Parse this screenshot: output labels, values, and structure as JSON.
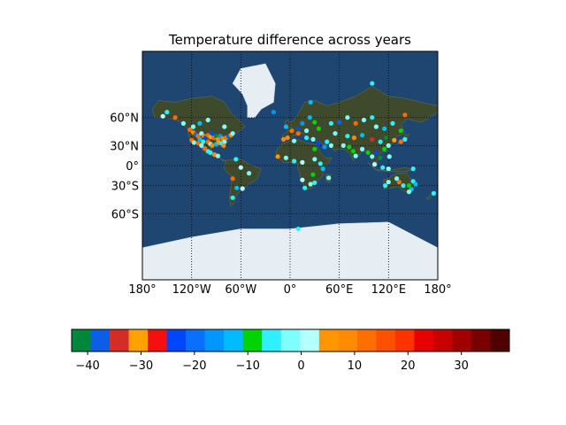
{
  "title": "Temperature difference across years",
  "map": {
    "lat_labels": [
      "60°N",
      "30°N",
      "0°",
      "30°S",
      "60°S"
    ],
    "lon_labels": [
      "180°",
      "120°W",
      "60°W",
      "0°",
      "60°E",
      "120°E",
      "180°"
    ],
    "lat_values": [
      60,
      30,
      0,
      -30,
      -60
    ],
    "lon_values": [
      -180,
      -120,
      -60,
      0,
      60,
      120,
      180
    ],
    "colors": {
      "ocean": "#1f4670",
      "land": "#3f4a2c",
      "ice": "#e6eef4"
    }
  },
  "chart_data": {
    "type": "scatter",
    "title": "Temperature difference across years",
    "xlabel": "",
    "ylabel": "",
    "xlim": [
      -180,
      180
    ],
    "ylim": [
      -85,
      85
    ],
    "colorbar": {
      "ticks": [
        -40,
        -30,
        -20,
        -10,
        0,
        10,
        20,
        30
      ],
      "range": [
        -43,
        39
      ],
      "colors": [
        "#00873c",
        "#0a5fe6",
        "#d42d28",
        "#ffa200",
        "#f50f0f",
        "#0046ff",
        "#0a6eff",
        "#0096ff",
        "#00bcff",
        "#00d400",
        "#2ef0ff",
        "#80ffff",
        "#b4ffff",
        "#ff9600",
        "#ff8c00",
        "#ff6e00",
        "#ff5000",
        "#ff3200",
        "#e60000",
        "#c80000",
        "#a00000",
        "#780000",
        "#500000"
      ]
    },
    "points": [
      {
        "lon": -155,
        "lat": 61,
        "v": 2
      },
      {
        "lon": -150,
        "lat": 64,
        "v": -5
      },
      {
        "lon": -140,
        "lat": 60,
        "v": 12
      },
      {
        "lon": -130,
        "lat": 55,
        "v": -3
      },
      {
        "lon": -122,
        "lat": 49,
        "v": 14
      },
      {
        "lon": -118,
        "lat": 46,
        "v": 8
      },
      {
        "lon": -115,
        "lat": 44,
        "v": -20
      },
      {
        "lon": -112,
        "lat": 42,
        "v": 12
      },
      {
        "lon": -108,
        "lat": 45,
        "v": -1
      },
      {
        "lon": -105,
        "lat": 42,
        "v": 9
      },
      {
        "lon": -103,
        "lat": 40,
        "v": -24
      },
      {
        "lon": -100,
        "lat": 43,
        "v": 13
      },
      {
        "lon": -97,
        "lat": 41,
        "v": -31
      },
      {
        "lon": -95,
        "lat": 45,
        "v": -25
      },
      {
        "lon": -93,
        "lat": 40,
        "v": 11
      },
      {
        "lon": -90,
        "lat": 42,
        "v": -42
      },
      {
        "lon": -88,
        "lat": 38,
        "v": 9
      },
      {
        "lon": -85,
        "lat": 42,
        "v": -15
      },
      {
        "lon": -82,
        "lat": 39,
        "v": 10
      },
      {
        "lon": -80,
        "lat": 35,
        "v": -3
      },
      {
        "lon": -78,
        "lat": 40,
        "v": 12
      },
      {
        "lon": -75,
        "lat": 42,
        "v": -37
      },
      {
        "lon": -72,
        "lat": 43,
        "v": 8
      },
      {
        "lon": -70,
        "lat": 45,
        "v": -2
      },
      {
        "lon": -120,
        "lat": 37,
        "v": 11
      },
      {
        "lon": -117,
        "lat": 34,
        "v": -3
      },
      {
        "lon": -112,
        "lat": 33,
        "v": 14
      },
      {
        "lon": -110,
        "lat": 38,
        "v": -12
      },
      {
        "lon": -106,
        "lat": 35,
        "v": -4
      },
      {
        "lon": -100,
        "lat": 35,
        "v": 12
      },
      {
        "lon": -97,
        "lat": 32,
        "v": -1
      },
      {
        "lon": -95,
        "lat": 30,
        "v": 10
      },
      {
        "lon": -90,
        "lat": 32,
        "v": -13
      },
      {
        "lon": -87,
        "lat": 34,
        "v": 5
      },
      {
        "lon": -84,
        "lat": 33,
        "v": -4
      },
      {
        "lon": -81,
        "lat": 30,
        "v": 9
      },
      {
        "lon": -108,
        "lat": 30,
        "v": -1
      },
      {
        "lon": -104,
        "lat": 26,
        "v": 12
      },
      {
        "lon": -100,
        "lat": 22,
        "v": -7
      },
      {
        "lon": -97,
        "lat": 20,
        "v": -6
      },
      {
        "lon": -92,
        "lat": 17,
        "v": 10
      },
      {
        "lon": -88,
        "lat": 15,
        "v": -2
      },
      {
        "lon": -118,
        "lat": 52,
        "v": -3
      },
      {
        "lon": -110,
        "lat": 55,
        "v": -14
      },
      {
        "lon": -100,
        "lat": 58,
        "v": -2
      },
      {
        "lon": -80,
        "lat": 52,
        "v": -1
      },
      {
        "lon": -66,
        "lat": 10,
        "v": -4
      },
      {
        "lon": -60,
        "lat": -3,
        "v": 2
      },
      {
        "lon": -50,
        "lat": -12,
        "v": -1
      },
      {
        "lon": -70,
        "lat": -20,
        "v": 14
      },
      {
        "lon": -65,
        "lat": -33,
        "v": -11
      },
      {
        "lon": -58,
        "lat": -34,
        "v": 3
      },
      {
        "lon": -70,
        "lat": -45,
        "v": -5
      },
      {
        "lon": -20,
        "lat": 64,
        "v": -15
      },
      {
        "lon": -5,
        "lat": 52,
        "v": -12
      },
      {
        "lon": 2,
        "lat": 48,
        "v": 11
      },
      {
        "lon": 10,
        "lat": 50,
        "v": -23
      },
      {
        "lon": 15,
        "lat": 55,
        "v": -16
      },
      {
        "lon": 20,
        "lat": 48,
        "v": -1
      },
      {
        "lon": 24,
        "lat": 60,
        "v": -12
      },
      {
        "lon": 30,
        "lat": 56,
        "v": -9
      },
      {
        "lon": 35,
        "lat": 50,
        "v": -8
      },
      {
        "lon": 25,
        "lat": 70,
        "v": -12
      },
      {
        "lon": 10,
        "lat": 45,
        "v": 12
      },
      {
        "lon": -3,
        "lat": 40,
        "v": 8
      },
      {
        "lon": -8,
        "lat": 38,
        "v": 10
      },
      {
        "lon": 5,
        "lat": 36,
        "v": -3
      },
      {
        "lon": 20,
        "lat": 40,
        "v": -5
      },
      {
        "lon": 28,
        "lat": 38,
        "v": -1
      },
      {
        "lon": 35,
        "lat": 33,
        "v": -24
      },
      {
        "lon": 45,
        "lat": 35,
        "v": -5
      },
      {
        "lon": 50,
        "lat": 30,
        "v": -3
      },
      {
        "lon": 42,
        "lat": 28,
        "v": -18
      },
      {
        "lon": 30,
        "lat": 25,
        "v": -9
      },
      {
        "lon": -15,
        "lat": 14,
        "v": 5
      },
      {
        "lon": -5,
        "lat": 12,
        "v": -3
      },
      {
        "lon": 5,
        "lat": 7,
        "v": -7
      },
      {
        "lon": 15,
        "lat": 5,
        "v": 2
      },
      {
        "lon": 30,
        "lat": 10,
        "v": -2
      },
      {
        "lon": 37,
        "lat": 3,
        "v": -6
      },
      {
        "lon": 40,
        "lat": -5,
        "v": -11
      },
      {
        "lon": 28,
        "lat": -14,
        "v": -9
      },
      {
        "lon": 15,
        "lat": -22,
        "v": 1
      },
      {
        "lon": 25,
        "lat": -28,
        "v": -2
      },
      {
        "lon": 18,
        "lat": -33,
        "v": -5
      },
      {
        "lon": 30,
        "lat": -26,
        "v": -4
      },
      {
        "lon": 47,
        "lat": -19,
        "v": -1
      },
      {
        "lon": 50,
        "lat": 55,
        "v": -6
      },
      {
        "lon": 60,
        "lat": 56,
        "v": -38
      },
      {
        "lon": 70,
        "lat": 60,
        "v": -1
      },
      {
        "lon": 80,
        "lat": 55,
        "v": 12
      },
      {
        "lon": 90,
        "lat": 58,
        "v": -3
      },
      {
        "lon": 100,
        "lat": 60,
        "v": -5
      },
      {
        "lon": 105,
        "lat": 52,
        "v": -1
      },
      {
        "lon": 115,
        "lat": 50,
        "v": -14
      },
      {
        "lon": 125,
        "lat": 55,
        "v": -4
      },
      {
        "lon": 135,
        "lat": 48,
        "v": -9
      },
      {
        "lon": 140,
        "lat": 62,
        "v": 14
      },
      {
        "lon": 100,
        "lat": 78,
        "v": -5
      },
      {
        "lon": 55,
        "lat": 45,
        "v": -2
      },
      {
        "lon": 70,
        "lat": 42,
        "v": -7
      },
      {
        "lon": 78,
        "lat": 40,
        "v": 8
      },
      {
        "lon": 88,
        "lat": 43,
        "v": -12
      },
      {
        "lon": 100,
        "lat": 38,
        "v": -35
      },
      {
        "lon": 110,
        "lat": 35,
        "v": -6
      },
      {
        "lon": 117,
        "lat": 40,
        "v": -41
      },
      {
        "lon": 120,
        "lat": 30,
        "v": -2
      },
      {
        "lon": 115,
        "lat": 25,
        "v": -9
      },
      {
        "lon": 127,
        "lat": 37,
        "v": -31
      },
      {
        "lon": 135,
        "lat": 35,
        "v": 12
      },
      {
        "lon": 140,
        "lat": 38,
        "v": -4
      },
      {
        "lon": 65,
        "lat": 30,
        "v": -3
      },
      {
        "lon": 72,
        "lat": 28,
        "v": -8
      },
      {
        "lon": 77,
        "lat": 22,
        "v": -10
      },
      {
        "lon": 80,
        "lat": 15,
        "v": -2
      },
      {
        "lon": 88,
        "lat": 25,
        "v": -1
      },
      {
        "lon": 95,
        "lat": 20,
        "v": -9
      },
      {
        "lon": 100,
        "lat": 14,
        "v": -1
      },
      {
        "lon": 105,
        "lat": 20,
        "v": -23
      },
      {
        "lon": 110,
        "lat": 12,
        "v": -40
      },
      {
        "lon": 121,
        "lat": 14,
        "v": -1
      },
      {
        "lon": 103,
        "lat": 2,
        "v": 3
      },
      {
        "lon": 113,
        "lat": -3,
        "v": -5
      },
      {
        "lon": 120,
        "lat": -5,
        "v": -1
      },
      {
        "lon": 150,
        "lat": -5,
        "v": -6
      },
      {
        "lon": 116,
        "lat": -30,
        "v": -4
      },
      {
        "lon": 120,
        "lat": -25,
        "v": -1
      },
      {
        "lon": 130,
        "lat": -20,
        "v": -2
      },
      {
        "lon": 133,
        "lat": -25,
        "v": 14
      },
      {
        "lon": 138,
        "lat": -30,
        "v": -4
      },
      {
        "lon": 145,
        "lat": -30,
        "v": -8
      },
      {
        "lon": 148,
        "lat": -35,
        "v": -11
      },
      {
        "lon": 150,
        "lat": -24,
        "v": -6
      },
      {
        "lon": 153,
        "lat": -28,
        "v": -12
      },
      {
        "lon": 145,
        "lat": -38,
        "v": -2
      },
      {
        "lon": 175,
        "lat": -40,
        "v": -6
      },
      {
        "lon": 10,
        "lat": -70,
        "v": -5
      }
    ]
  }
}
